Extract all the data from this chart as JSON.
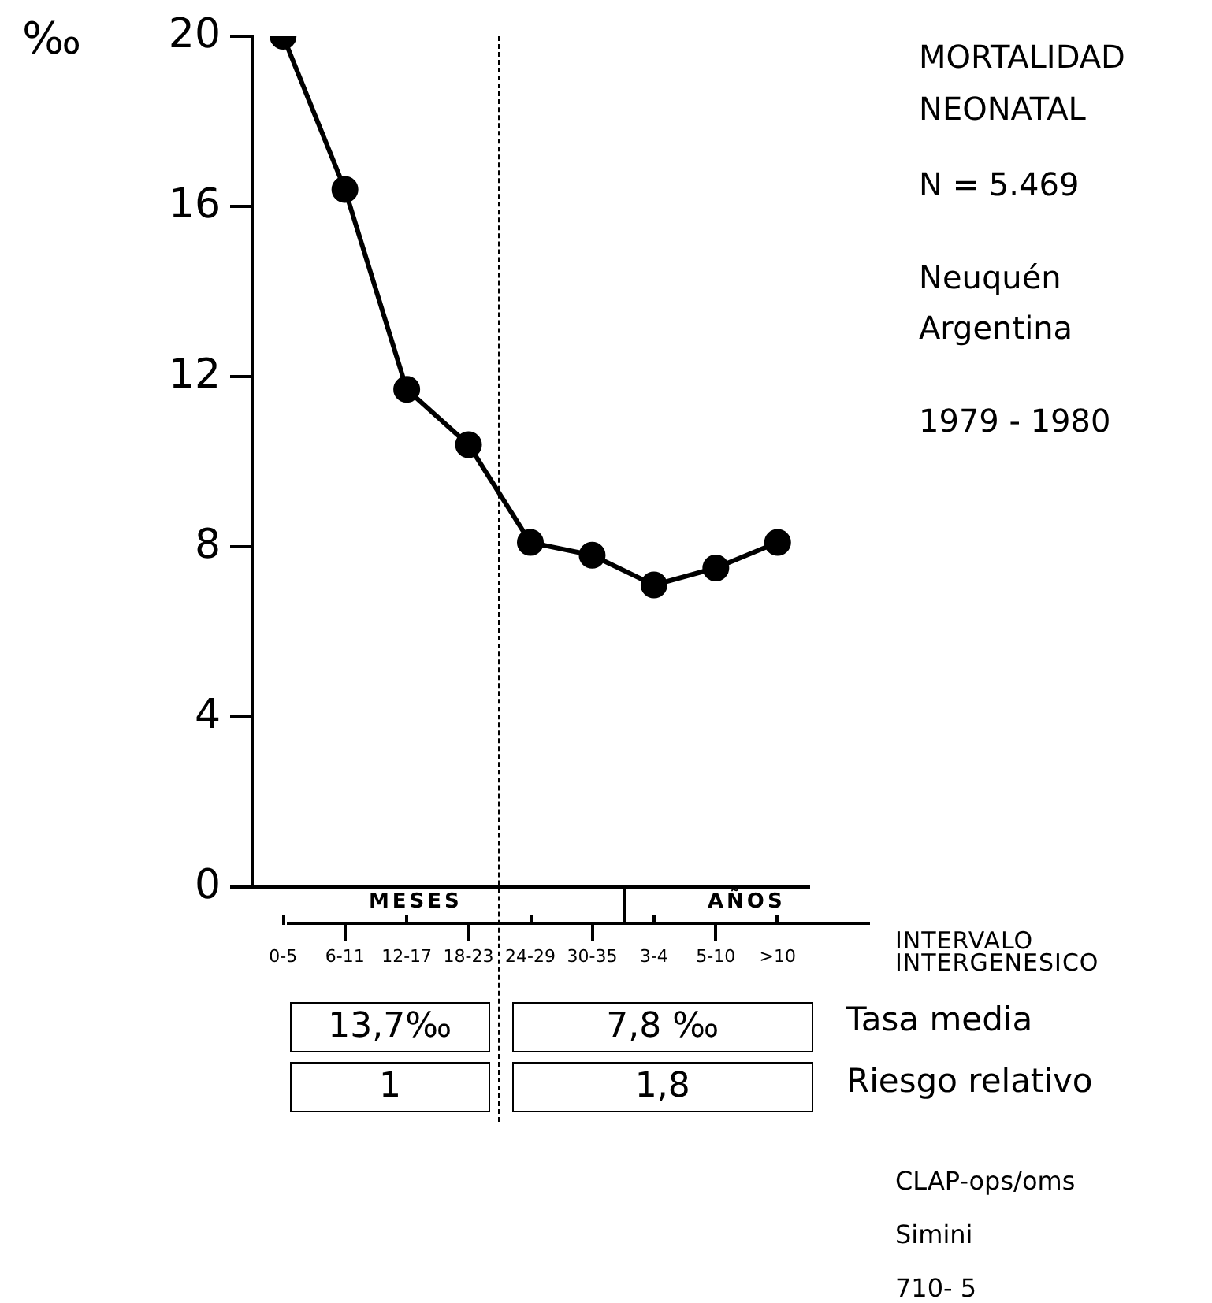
{
  "chart_data": {
    "type": "line",
    "title": "MORTALIDAD NEONATAL",
    "subtitle": "N = 5.469",
    "ylabel": "‰",
    "xlabel": "INTERVALO INTERGENESICO",
    "categories": [
      "0-5",
      "6-11",
      "12-17",
      "18-23",
      "24-29",
      "30-35",
      "3-4",
      "5-10",
      ">10"
    ],
    "series": [
      {
        "color": "#000000",
        "values": [
          20,
          16.4,
          11.7,
          10.4,
          8.1,
          7.8,
          7.1,
          7.5,
          8.1
        ]
      }
    ],
    "ylim": [
      0,
      20
    ],
    "yticks": [
      0,
      4,
      8,
      12,
      16,
      20
    ],
    "grid": false,
    "legend": false,
    "marker": "circle",
    "line_style": "solid",
    "annotations": [
      "Neuquén Argentina",
      "1979 - 1980",
      "MESES",
      "AÑOS",
      "13,7‰",
      "7,8 ‰",
      "Tasa media",
      "1",
      "1,8",
      "Riesgo relativo",
      "CLAP-ops/oms",
      "Simini",
      "710- 5"
    ]
  }
}
